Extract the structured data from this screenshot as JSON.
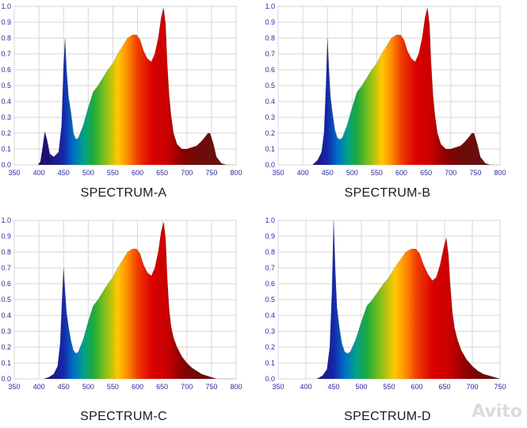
{
  "chart_data": [
    {
      "type": "area",
      "title": "SPECTRUM-A",
      "xlim": [
        350,
        800
      ],
      "ylim": [
        0,
        1.0
      ],
      "xticks": [
        350,
        400,
        450,
        500,
        550,
        600,
        650,
        700,
        750,
        800
      ],
      "yticks": [
        0.0,
        0.1,
        0.2,
        0.3,
        0.4,
        0.5,
        0.6,
        0.7,
        0.8,
        0.9,
        1.0
      ],
      "x": [
        398,
        403,
        408,
        412,
        417,
        422,
        430,
        440,
        446,
        450,
        453,
        456,
        460,
        465,
        470,
        475,
        480,
        490,
        500,
        510,
        520,
        530,
        540,
        550,
        560,
        570,
        580,
        590,
        598,
        605,
        612,
        620,
        628,
        635,
        642,
        648,
        653,
        657,
        660,
        664,
        668,
        673,
        680,
        690,
        700,
        710,
        720,
        730,
        738,
        743,
        747,
        750,
        754,
        760,
        770,
        780,
        790,
        800
      ],
      "y": [
        0.0,
        0.02,
        0.12,
        0.21,
        0.15,
        0.07,
        0.05,
        0.08,
        0.25,
        0.62,
        0.8,
        0.6,
        0.43,
        0.33,
        0.2,
        0.16,
        0.17,
        0.25,
        0.36,
        0.46,
        0.5,
        0.55,
        0.6,
        0.64,
        0.7,
        0.75,
        0.8,
        0.82,
        0.82,
        0.79,
        0.72,
        0.67,
        0.65,
        0.7,
        0.8,
        0.93,
        0.99,
        0.88,
        0.65,
        0.44,
        0.31,
        0.2,
        0.13,
        0.1,
        0.1,
        0.11,
        0.12,
        0.15,
        0.18,
        0.2,
        0.2,
        0.17,
        0.13,
        0.05,
        0.01,
        0.0,
        0.0,
        0.0
      ]
    },
    {
      "type": "area",
      "title": "SPECTRUM-B",
      "xlim": [
        350,
        800
      ],
      "ylim": [
        0,
        1.0
      ],
      "xticks": [
        350,
        400,
        450,
        500,
        550,
        600,
        650,
        700,
        750,
        800
      ],
      "yticks": [
        0.0,
        0.1,
        0.2,
        0.3,
        0.4,
        0.5,
        0.6,
        0.7,
        0.8,
        0.9,
        1.0
      ],
      "x": [
        420,
        430,
        438,
        443,
        447,
        450,
        453,
        456,
        460,
        465,
        470,
        475,
        480,
        490,
        500,
        510,
        520,
        530,
        540,
        550,
        560,
        570,
        580,
        590,
        598,
        605,
        612,
        620,
        628,
        635,
        642,
        648,
        653,
        657,
        660,
        664,
        668,
        673,
        680,
        690,
        700,
        710,
        720,
        730,
        738,
        743,
        747,
        750,
        754,
        760,
        770,
        780,
        790,
        800
      ],
      "y": [
        0.0,
        0.03,
        0.08,
        0.2,
        0.5,
        0.8,
        0.6,
        0.43,
        0.33,
        0.22,
        0.17,
        0.16,
        0.17,
        0.25,
        0.36,
        0.46,
        0.5,
        0.55,
        0.6,
        0.64,
        0.7,
        0.75,
        0.8,
        0.82,
        0.82,
        0.79,
        0.72,
        0.67,
        0.65,
        0.7,
        0.8,
        0.93,
        0.99,
        0.88,
        0.65,
        0.44,
        0.31,
        0.2,
        0.13,
        0.1,
        0.1,
        0.11,
        0.12,
        0.15,
        0.18,
        0.2,
        0.2,
        0.17,
        0.13,
        0.05,
        0.01,
        0.0,
        0.0,
        0.0
      ]
    },
    {
      "type": "area",
      "title": "SPECTRUM-C",
      "xlim": [
        350,
        800
      ],
      "ylim": [
        0,
        1.0
      ],
      "xticks": [
        350,
        400,
        450,
        500,
        550,
        600,
        650,
        700,
        750,
        800
      ],
      "yticks": [
        0.0,
        0.1,
        0.2,
        0.3,
        0.4,
        0.5,
        0.6,
        0.7,
        0.8,
        0.9,
        1.0
      ],
      "x": [
        410,
        420,
        430,
        438,
        443,
        447,
        450,
        453,
        456,
        460,
        465,
        470,
        475,
        480,
        490,
        500,
        510,
        520,
        530,
        540,
        550,
        560,
        570,
        580,
        590,
        598,
        605,
        612,
        620,
        628,
        635,
        642,
        648,
        653,
        657,
        660,
        664,
        668,
        673,
        680,
        690,
        700,
        710,
        720,
        730,
        740,
        750,
        760,
        770,
        780,
        790,
        800
      ],
      "y": [
        0.0,
        0.01,
        0.03,
        0.08,
        0.22,
        0.5,
        0.7,
        0.55,
        0.42,
        0.33,
        0.24,
        0.18,
        0.16,
        0.17,
        0.25,
        0.36,
        0.46,
        0.5,
        0.55,
        0.6,
        0.64,
        0.7,
        0.75,
        0.8,
        0.82,
        0.82,
        0.79,
        0.72,
        0.67,
        0.65,
        0.7,
        0.8,
        0.93,
        0.99,
        0.88,
        0.65,
        0.44,
        0.33,
        0.26,
        0.2,
        0.14,
        0.1,
        0.07,
        0.05,
        0.03,
        0.02,
        0.01,
        0.0,
        0.0,
        0.0,
        0.0,
        0.0
      ]
    },
    {
      "type": "area",
      "title": "SPECTRUM-D",
      "xlim": [
        350,
        750
      ],
      "ylim": [
        0,
        1.0
      ],
      "xticks": [
        350,
        400,
        450,
        500,
        550,
        600,
        650,
        700,
        750
      ],
      "yticks": [
        0.0,
        0.1,
        0.2,
        0.3,
        0.4,
        0.5,
        0.6,
        0.7,
        0.8,
        0.9,
        1.0
      ],
      "x": [
        420,
        430,
        438,
        443,
        447,
        450,
        453,
        456,
        460,
        465,
        470,
        475,
        480,
        490,
        500,
        510,
        520,
        530,
        540,
        550,
        560,
        570,
        580,
        590,
        598,
        605,
        612,
        620,
        628,
        635,
        642,
        648,
        653,
        657,
        660,
        664,
        668,
        673,
        680,
        690,
        700,
        710,
        720,
        730,
        740,
        750
      ],
      "y": [
        0.0,
        0.02,
        0.06,
        0.2,
        0.55,
        1.0,
        0.68,
        0.45,
        0.33,
        0.22,
        0.17,
        0.16,
        0.17,
        0.25,
        0.36,
        0.46,
        0.5,
        0.55,
        0.6,
        0.64,
        0.7,
        0.75,
        0.8,
        0.82,
        0.82,
        0.79,
        0.72,
        0.66,
        0.62,
        0.64,
        0.72,
        0.82,
        0.89,
        0.78,
        0.6,
        0.42,
        0.32,
        0.25,
        0.18,
        0.12,
        0.08,
        0.05,
        0.03,
        0.02,
        0.01,
        0.0
      ]
    }
  ],
  "watermark": "Avito"
}
